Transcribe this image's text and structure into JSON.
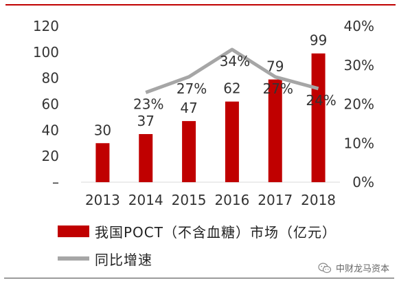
{
  "chart_data": {
    "type": "bar",
    "categories": [
      "2013",
      "2014",
      "2015",
      "2016",
      "2017",
      "2018"
    ],
    "series": [
      {
        "name": "我国POCT（不含血糖）市场（亿元）",
        "type": "bar",
        "axis": "left",
        "values": [
          30,
          37,
          47,
          62,
          79,
          99
        ],
        "data_labels": [
          "30",
          "37",
          "47",
          "62",
          "79",
          "99"
        ]
      },
      {
        "name": "同比增速",
        "type": "line",
        "axis": "right",
        "values": [
          null,
          23,
          27,
          34,
          27,
          24
        ],
        "data_labels": [
          "",
          "23%",
          "27%",
          "34%",
          "27%",
          "24%"
        ]
      }
    ],
    "y_left": {
      "ylim": [
        0,
        120
      ],
      "ticks": [
        "–",
        "20",
        "40",
        "60",
        "80",
        "100",
        "120"
      ]
    },
    "y_right": {
      "ylim": [
        0,
        40
      ],
      "ticks": [
        "0%",
        "10%",
        "20%",
        "30%",
        "40%"
      ]
    },
    "grid": false,
    "legend_position": "bottom-left"
  },
  "colors": {
    "bar": "#c00000",
    "line": "#a6a6a6",
    "accent_rule": "#c00000"
  },
  "watermark": {
    "text": "中财龙马资本",
    "icon": "wechat-icon"
  }
}
